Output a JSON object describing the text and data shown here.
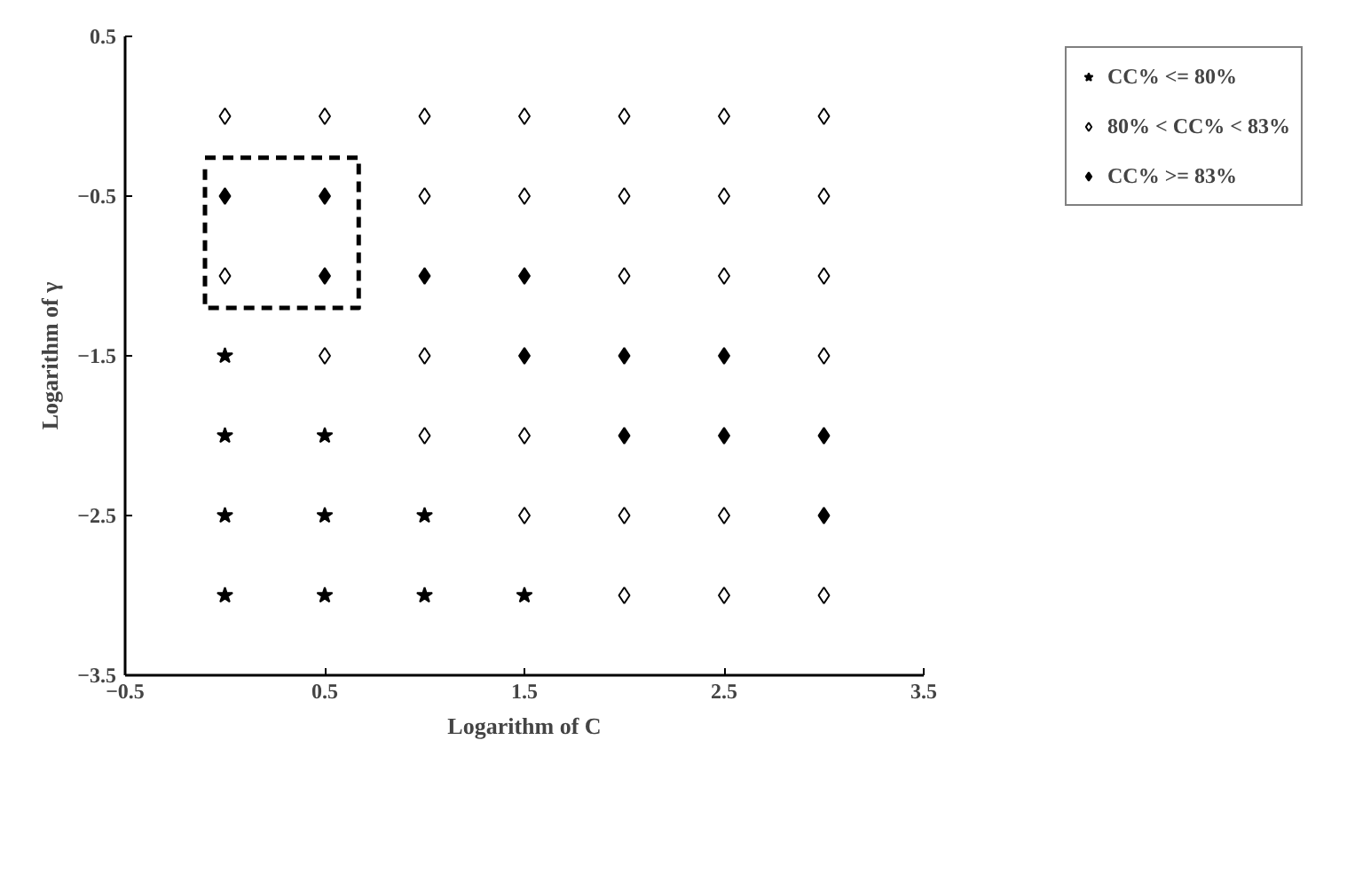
{
  "chart_data": {
    "type": "scatter",
    "xlabel": "Logarithm of C",
    "ylabel": "Logarithm of γ",
    "xlim": [
      -0.5,
      3.5
    ],
    "xticks": [
      -0.5,
      0.5,
      1.5,
      2.5,
      3.5
    ],
    "ylim": [
      -3.5,
      0.5
    ],
    "yticks": [
      -3.5,
      -2.5,
      -1.5,
      -0.5,
      0.5
    ],
    "grid": false,
    "legend": "right",
    "series": [
      {
        "type": "line",
        "line_style": "dashed",
        "marker": "none",
        "color": "#000000",
        "x": [
          -0.1,
          0.67,
          0.67,
          -0.1,
          -0.1
        ],
        "values": [
          -0.26,
          -0.26,
          -1.2,
          -1.2,
          -0.3
        ]
      },
      {
        "name": "CC% <= 80%",
        "marker": "star",
        "color": "#000000",
        "x": [
          0,
          0,
          0.5,
          0,
          0.5,
          1,
          0,
          0.5,
          1,
          1.5
        ],
        "values": [
          -1.5,
          -2,
          -2,
          -2.5,
          -2.5,
          -2.5,
          -3,
          -3,
          -3,
          -3
        ]
      },
      {
        "name": "80% < CC% < 83%",
        "marker": "diamond",
        "color": "#ffffff",
        "x": [
          0,
          0.5,
          1,
          1.5,
          2,
          2.5,
          3,
          1,
          1.5,
          2,
          2.5,
          3,
          0,
          2,
          2.5,
          3,
          0.5,
          1,
          3,
          1,
          1.5,
          1.5,
          2,
          2.5,
          2,
          2.5,
          3
        ],
        "values": [
          0,
          0,
          0,
          0,
          0,
          0,
          0,
          -0.5,
          -0.5,
          -0.5,
          -0.5,
          -0.5,
          -1,
          -1,
          -1,
          -1,
          -1.5,
          -1.5,
          -1.5,
          -2,
          -2,
          -2.5,
          -2.5,
          -2.5,
          -3,
          -3,
          -3
        ]
      },
      {
        "name": "CC% >= 83%",
        "marker": "diamond",
        "color": "#000000",
        "x": [
          0,
          0.5,
          0.5,
          1,
          1.5,
          1.5,
          2,
          2.5,
          2,
          2.5,
          3,
          3
        ],
        "values": [
          -0.5,
          -0.5,
          -1,
          -1,
          -1,
          -1.5,
          -1.5,
          -1.5,
          -2,
          -2,
          -2,
          -2.5
        ]
      }
    ]
  }
}
